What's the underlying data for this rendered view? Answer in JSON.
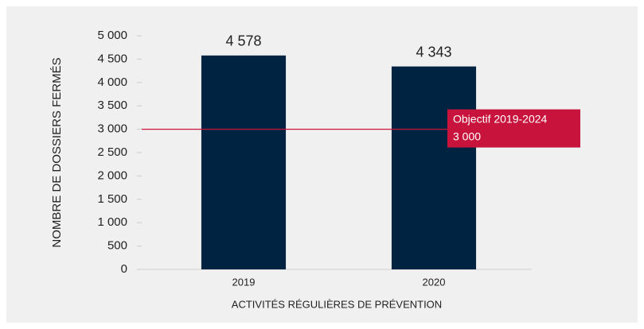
{
  "chart_data": {
    "type": "bar",
    "categories": [
      "2019",
      "2020"
    ],
    "values": [
      4578,
      4343
    ],
    "value_labels": [
      "4 578",
      "4 343"
    ],
    "color": "#002341",
    "xlabel": "ACTIVITÉS RÉGULIÈRES DE PRÉVENTION",
    "ylabel": "NOMBRE DE DOSSIERS FERMÉS",
    "ylim": [
      0,
      5000
    ],
    "yticks": [
      0,
      500,
      {
        "value": 1000,
        "label": "1 000"
      },
      {
        "value": 1500,
        "label": "1 500"
      },
      {
        "value": 2000,
        "label": "2 000"
      },
      {
        "value": 2500,
        "label": "2 500"
      },
      {
        "value": 3000,
        "label": "3 000"
      },
      {
        "value": 3500,
        "label": "3 500"
      },
      {
        "value": 4000,
        "label": "4 000"
      },
      {
        "value": 4500,
        "label": "4 500"
      },
      {
        "value": 5000,
        "label": "5 000"
      }
    ],
    "grid": false,
    "reference_line": {
      "value": 3000,
      "label": "3 000",
      "text": "Objectif 2019-2024",
      "color": "#c8143c"
    }
  }
}
